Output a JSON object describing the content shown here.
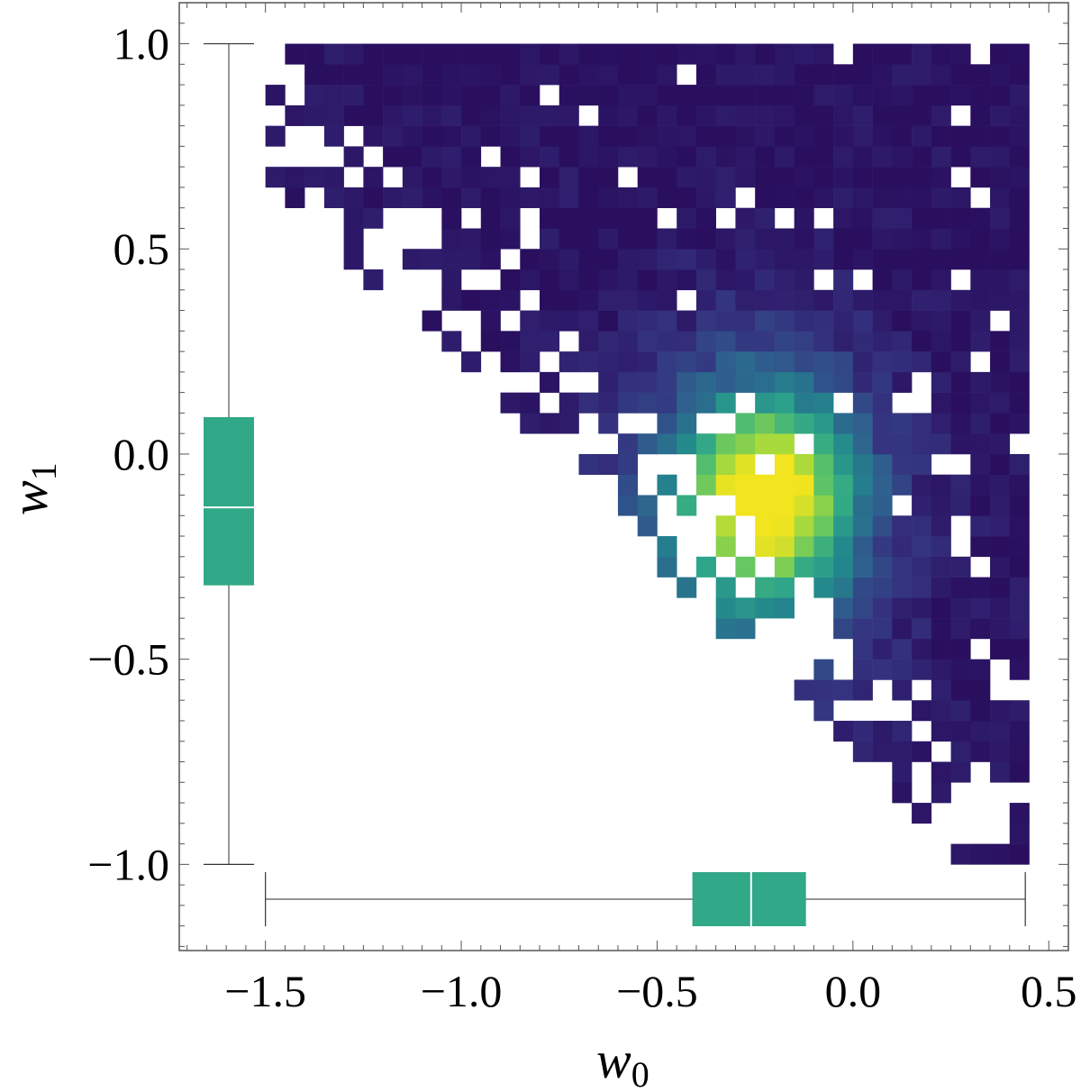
{
  "chart_data": {
    "type": "heatmap",
    "title": "",
    "xlabel": "w",
    "xlabel_sub": "0",
    "ylabel": "w",
    "ylabel_sub": "1",
    "xlim": [
      -1.72,
      0.55
    ],
    "ylim": [
      -1.21,
      1.1
    ],
    "x_ticks": [
      {
        "value": -1.5,
        "label": "−1.5"
      },
      {
        "value": -1.0,
        "label": "−1.0"
      },
      {
        "value": -0.5,
        "label": "−0.5"
      },
      {
        "value": 0.0,
        "label": "0.0"
      },
      {
        "value": 0.5,
        "label": "0.5"
      }
    ],
    "y_ticks": [
      {
        "value": 1.0,
        "label": "1.0"
      },
      {
        "value": 0.5,
        "label": "0.5"
      },
      {
        "value": 0.0,
        "label": "0.0"
      },
      {
        "value": -0.5,
        "label": "−0.5"
      },
      {
        "value": -1.0,
        "label": "−1.0"
      }
    ],
    "colormap": [
      "#2a0f5f",
      "#34327f",
      "#2f5f8e",
      "#23858d",
      "#2ea589",
      "#5bc367",
      "#a3d93e",
      "#f2e41e"
    ],
    "box_color": "#31a887",
    "x_marginal_box": {
      "whisker_low": -1.5,
      "q1": -0.41,
      "median": -0.26,
      "q3": -0.12,
      "whisker_high": 0.44
    },
    "y_marginal_box": {
      "whisker_low": -1.0,
      "q1": -0.32,
      "median": -0.13,
      "q3": 0.09,
      "whisker_high": 1.0
    },
    "grid": false
  }
}
